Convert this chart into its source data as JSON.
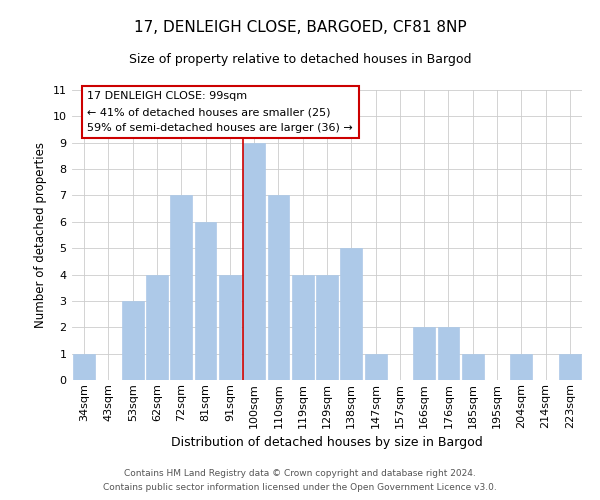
{
  "title": "17, DENLEIGH CLOSE, BARGOED, CF81 8NP",
  "subtitle": "Size of property relative to detached houses in Bargod",
  "xlabel": "Distribution of detached houses by size in Bargod",
  "ylabel": "Number of detached properties",
  "footer_line1": "Contains HM Land Registry data © Crown copyright and database right 2024.",
  "footer_line2": "Contains public sector information licensed under the Open Government Licence v3.0.",
  "categories": [
    "34sqm",
    "43sqm",
    "53sqm",
    "62sqm",
    "72sqm",
    "81sqm",
    "91sqm",
    "100sqm",
    "110sqm",
    "119sqm",
    "129sqm",
    "138sqm",
    "147sqm",
    "157sqm",
    "166sqm",
    "176sqm",
    "185sqm",
    "195sqm",
    "204sqm",
    "214sqm",
    "223sqm"
  ],
  "values": [
    1,
    0,
    3,
    4,
    7,
    6,
    4,
    9,
    7,
    4,
    4,
    5,
    1,
    0,
    2,
    2,
    1,
    0,
    1,
    0,
    1
  ],
  "bar_color": "#adc9e8",
  "bar_edge_color": "#adc9e8",
  "highlight_index": 7,
  "highlight_line_color": "#cc0000",
  "ylim": [
    0,
    11
  ],
  "yticks": [
    0,
    1,
    2,
    3,
    4,
    5,
    6,
    7,
    8,
    9,
    10,
    11
  ],
  "annotation_title": "17 DENLEIGH CLOSE: 99sqm",
  "annotation_line1": "← 41% of detached houses are smaller (25)",
  "annotation_line2": "59% of semi-detached houses are larger (36) →",
  "annotation_box_color": "#ffffff",
  "annotation_box_edge_color": "#cc0000",
  "background_color": "#ffffff",
  "grid_color": "#cccccc",
  "title_fontsize": 11,
  "subtitle_fontsize": 9,
  "ylabel_fontsize": 8.5,
  "xlabel_fontsize": 9,
  "tick_fontsize": 8,
  "footer_fontsize": 6.5
}
